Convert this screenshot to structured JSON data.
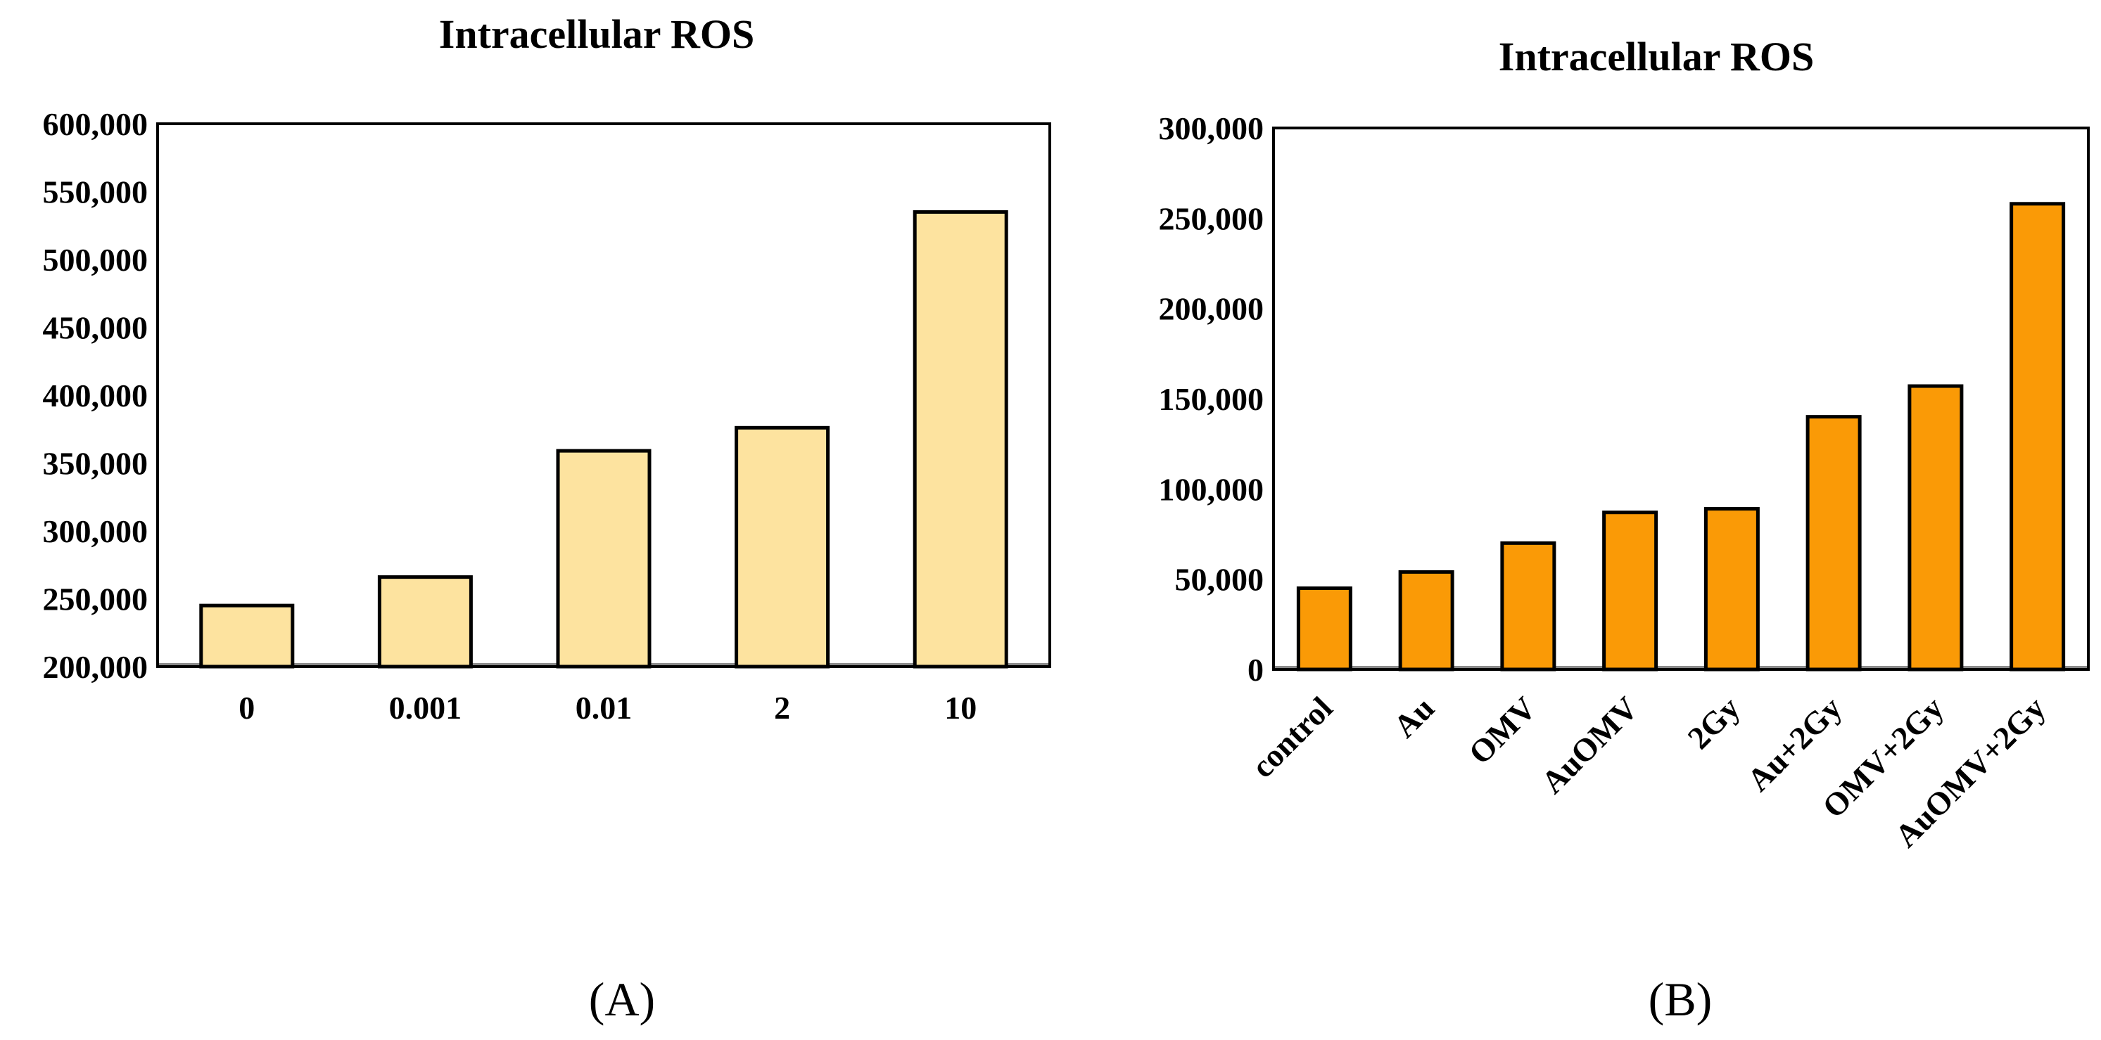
{
  "chart_data": [
    {
      "type": "bar",
      "panel_label": "(A)",
      "title": "Intracellular ROS",
      "xlabel": "",
      "ylabel": "",
      "categories": [
        "0",
        "0.001",
        "0.01",
        "2",
        "10"
      ],
      "values": [
        245000,
        266000,
        359000,
        376000,
        535000
      ],
      "ylim": [
        200000,
        600000
      ],
      "yticks": [
        200000,
        250000,
        300000,
        350000,
        400000,
        450000,
        500000,
        550000,
        600000
      ],
      "ytick_labels": [
        "200,000",
        "250,000",
        "300,000",
        "350,000",
        "400,000",
        "450,000",
        "500,000",
        "550,000",
        "600,000"
      ],
      "bar_color": "#fde39f",
      "grid": false,
      "legend": "none"
    },
    {
      "type": "bar",
      "panel_label": "(B)",
      "title": "Intracellular ROS",
      "xlabel": "",
      "ylabel": "",
      "categories": [
        "control",
        "Au",
        "OMV",
        "AuOMV",
        "2Gy",
        "Au+2Gy",
        "OMV+2Gy",
        "AuOMV+2Gy"
      ],
      "values": [
        45000,
        54000,
        70000,
        87000,
        89000,
        140000,
        157000,
        258000
      ],
      "ylim": [
        0,
        300000
      ],
      "yticks": [
        0,
        50000,
        100000,
        150000,
        200000,
        250000,
        300000
      ],
      "ytick_labels": [
        "0",
        "50,000",
        "100,000",
        "150,000",
        "200,000",
        "250,000",
        "300,000"
      ],
      "bar_color": "#fa9a06",
      "grid": false,
      "legend": "none"
    }
  ]
}
